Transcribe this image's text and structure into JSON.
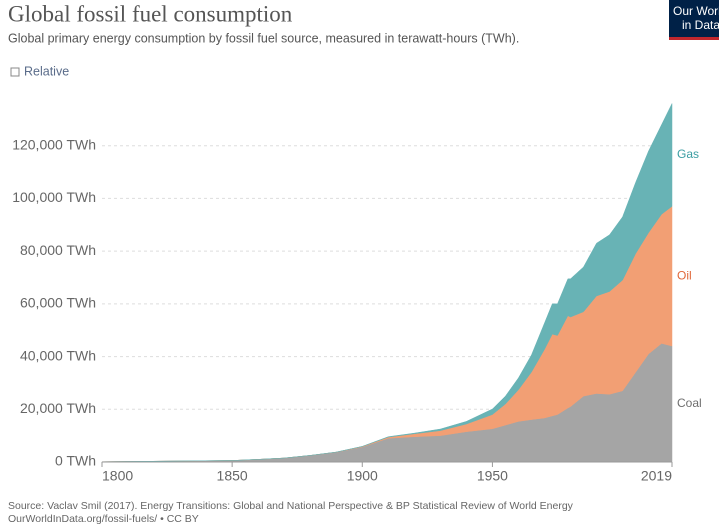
{
  "chart_data": {
    "type": "stacked-area",
    "title": "Global fossil fuel consumption",
    "subtitle": "Global primary energy consumption by fossil fuel source, measured in terawatt-hours (TWh).",
    "toggle": "Relative",
    "source": "Source: Vaclav Smil (2017). Energy Transitions: Global and National Perspective & BP Statistical Review of World Energy",
    "url": "OurWorldInData.org/fossil-fuels/ • CC BY",
    "logo": [
      "Our World",
      "in Data"
    ],
    "x": [
      1800,
      1850,
      1860,
      1870,
      1880,
      1890,
      1900,
      1910,
      1920,
      1930,
      1940,
      1950,
      1955,
      1960,
      1965,
      1970,
      1973,
      1975,
      1979,
      1980,
      1985,
      1990,
      1995,
      2000,
      2005,
      2010,
      2015,
      2019
    ],
    "series": [
      {
        "name": "Coal",
        "color": "#a5a5a5",
        "label_color": "#6e6e6e",
        "values": [
          97,
          570,
          1000,
          1500,
          2500,
          3700,
          5700,
          9000,
          9600,
          10000,
          11500,
          12600,
          14000,
          15400,
          16100,
          16700,
          17500,
          18000,
          20500,
          21000,
          25000,
          26000,
          25700,
          27000,
          34000,
          41000,
          45000,
          44000
        ]
      },
      {
        "name": "Oil",
        "color": "#f29f74",
        "label_color": "#e0683a",
        "values": [
          0,
          0,
          0,
          0,
          0,
          50,
          180,
          450,
          1100,
          1900,
          2900,
          5400,
          8000,
          12000,
          18000,
          26000,
          31000,
          30000,
          35000,
          34000,
          32000,
          37000,
          39000,
          42000,
          45000,
          46000,
          49000,
          53000
        ]
      },
      {
        "name": "Gas",
        "color": "#68b3b5",
        "label_color": "#3a9da2",
        "values": [
          0,
          0,
          0,
          0,
          0,
          20,
          60,
          150,
          250,
          600,
          1000,
          2100,
          3000,
          4500,
          6500,
          10000,
          11500,
          12000,
          14000,
          14500,
          17000,
          20000,
          21500,
          24000,
          27000,
          31000,
          34000,
          39000
        ]
      }
    ],
    "xlim": [
      1800,
      2019
    ],
    "xticks": [
      1800,
      1850,
      1900,
      1950,
      2019
    ],
    "ylim": [
      0,
      140000
    ],
    "yticks": [
      {
        "value": 0,
        "label": "0 TWh"
      },
      {
        "value": 20000,
        "label": "20,000 TWh"
      },
      {
        "value": 40000,
        "label": "40,000 TWh"
      },
      {
        "value": 60000,
        "label": "60,000 TWh"
      },
      {
        "value": 80000,
        "label": "80,000 TWh"
      },
      {
        "value": 100000,
        "label": "100,000 TWh"
      },
      {
        "value": 120000,
        "label": "120,000 TWh"
      }
    ],
    "grid": true
  }
}
